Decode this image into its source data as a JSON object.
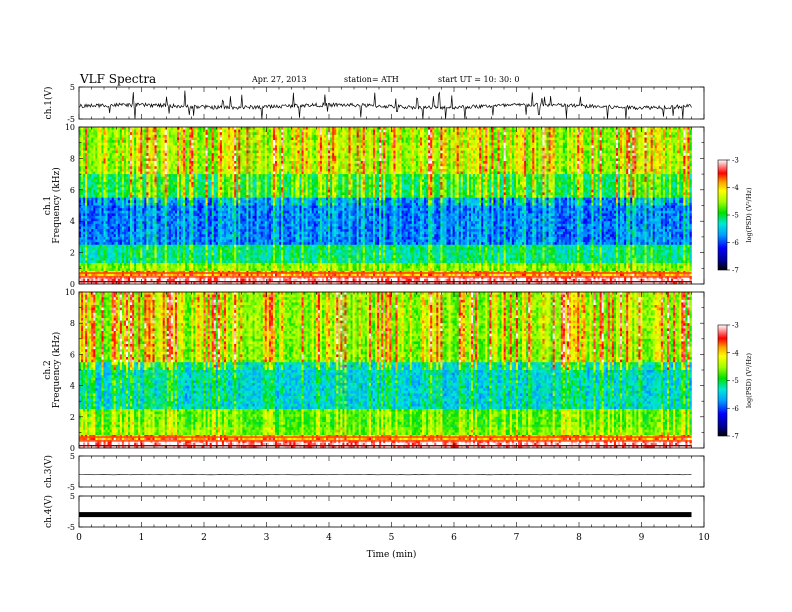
{
  "header": {
    "title": "VLF  Spectra",
    "date": "Apr. 27, 2013",
    "station": "station= ATH",
    "start": "start  UT  =    10: 30: 0"
  },
  "chart_data": [
    {
      "type": "line",
      "ylabel": "ch.1(V)",
      "ylim": [
        -5,
        5
      ],
      "yticks": [
        "5",
        "-5"
      ],
      "xlim": [
        0,
        10
      ],
      "signal": "noisy trace centred near -1 V with frequent spikes"
    },
    {
      "type": "heatmap",
      "ylabel_channel": "ch.1",
      "ylabel": "Frequency  (kHz)",
      "ylim": [
        0,
        10
      ],
      "yticks": [
        "0",
        "2",
        "4",
        "6",
        "8",
        "10"
      ],
      "xlim": [
        0,
        10
      ],
      "data_end_min": 9.8,
      "colorbar": {
        "label": "log(PSD) (V²/Hz)",
        "range": [
          -7,
          -3
        ],
        "ticks": [
          "-3",
          "-4",
          "-5",
          "-6",
          "-7"
        ]
      }
    },
    {
      "type": "heatmap",
      "ylabel_channel": "ch.2",
      "ylabel": "Frequency  (kHz)",
      "ylim": [
        0,
        10
      ],
      "yticks": [
        "0",
        "2",
        "4",
        "6",
        "8",
        "10"
      ],
      "xlim": [
        0,
        10
      ],
      "data_end_min": 9.8,
      "colorbar": {
        "label": "log(PSD) (V²/Hz)",
        "range": [
          -7,
          -3
        ],
        "ticks": [
          "-3",
          "-4",
          "-5",
          "-6",
          "-7"
        ]
      }
    },
    {
      "type": "line",
      "ylabel": "ch.3(V)",
      "ylim": [
        -5,
        5
      ],
      "yticks": [
        "5",
        "-5"
      ],
      "xlim": [
        0,
        10
      ],
      "signal": "flat trace near -1 V"
    },
    {
      "type": "line",
      "ylabel": "ch.4(V)",
      "ylim": [
        -5,
        5
      ],
      "yticks": [
        "5",
        "-5"
      ],
      "xlim": [
        0,
        10
      ],
      "xlabel": "Time  (min)",
      "xticks": [
        "0",
        "1",
        "2",
        "3",
        "4",
        "5",
        "6",
        "7",
        "8",
        "9",
        "10"
      ],
      "signal": "thick constant band near -1 V"
    }
  ]
}
